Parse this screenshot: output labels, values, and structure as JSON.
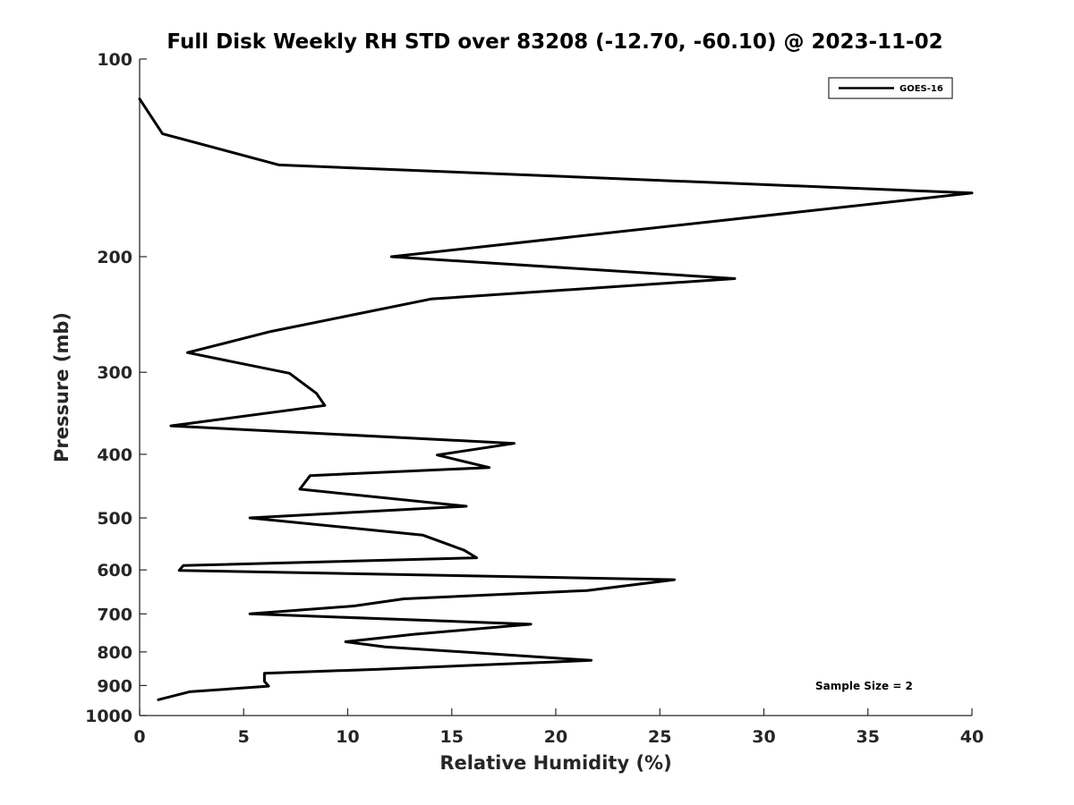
{
  "chart_data": {
    "type": "line",
    "title": "Full Disk Weekly RH STD over 83208 (-12.70, -60.10) @ 2023-11-02",
    "xlabel": "Relative Humidity (%)",
    "ylabel": "Pressure (mb)",
    "xlim": [
      0,
      40
    ],
    "ylim": [
      100,
      1000
    ],
    "y_scale": "log",
    "y_reversed": true,
    "grid": false,
    "legend_position": "top-right",
    "x_ticks": [
      0,
      5,
      10,
      15,
      20,
      25,
      30,
      35,
      40
    ],
    "y_ticks": [
      100,
      200,
      300,
      400,
      500,
      600,
      700,
      800,
      900,
      1000
    ],
    "annotation": "Sample Size = 2",
    "series": [
      {
        "name": "GOES-16",
        "color": "#000000",
        "points": [
          [
            0.0,
            115
          ],
          [
            1.1,
            130
          ],
          [
            6.7,
            145
          ],
          [
            40.0,
            160
          ],
          [
            12.1,
            200
          ],
          [
            28.6,
            216
          ],
          [
            14.0,
            232
          ],
          [
            6.3,
            260
          ],
          [
            2.3,
            280
          ],
          [
            7.2,
            301
          ],
          [
            8.5,
            323
          ],
          [
            8.9,
            337
          ],
          [
            1.5,
            362
          ],
          [
            18.0,
            385
          ],
          [
            14.3,
            401
          ],
          [
            16.8,
            419
          ],
          [
            8.2,
            431
          ],
          [
            7.7,
            452
          ],
          [
            15.7,
            480
          ],
          [
            5.3,
            500
          ],
          [
            13.6,
            531
          ],
          [
            15.6,
            560
          ],
          [
            16.2,
            575
          ],
          [
            2.1,
            591
          ],
          [
            1.9,
            601
          ],
          [
            25.7,
            621
          ],
          [
            21.5,
            645
          ],
          [
            12.7,
            664
          ],
          [
            10.3,
            681
          ],
          [
            5.3,
            700
          ],
          [
            18.8,
            726
          ],
          [
            13.2,
            752
          ],
          [
            9.9,
            772
          ],
          [
            11.8,
            786
          ],
          [
            21.7,
            824
          ],
          [
            11.5,
            850
          ],
          [
            6.0,
            862
          ],
          [
            6.0,
            887
          ],
          [
            6.2,
            902
          ],
          [
            2.4,
            920
          ],
          [
            0.9,
            946
          ]
        ]
      }
    ]
  }
}
